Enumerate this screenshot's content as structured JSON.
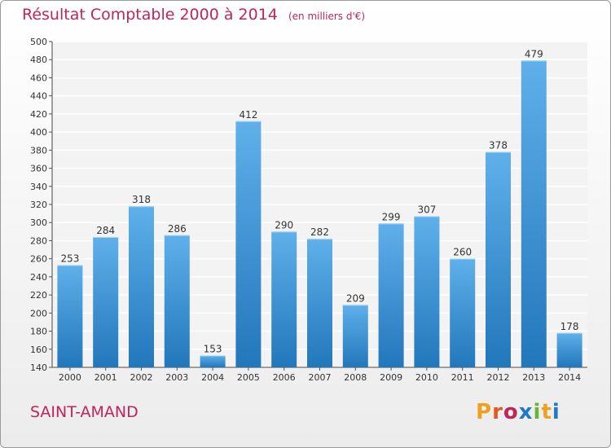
{
  "chart_data": {
    "type": "bar",
    "title": "Résultat Comptable 2000 à 2014",
    "unit": "(en milliers d'€)",
    "categories": [
      "2000",
      "2001",
      "2002",
      "2003",
      "2004",
      "2005",
      "2006",
      "2007",
      "2008",
      "2009",
      "2010",
      "2011",
      "2012",
      "2013",
      "2014"
    ],
    "values": [
      253,
      284,
      318,
      286,
      153,
      412,
      290,
      282,
      209,
      299,
      307,
      260,
      378,
      479,
      178
    ],
    "ylim": [
      140,
      500
    ],
    "ytick_step": 20,
    "grid": true,
    "bar_color": "#3a8fd4"
  },
  "footer": {
    "commune": "SAINT-AMAND",
    "logo": "Proxiti"
  },
  "colors": {
    "title": "#c0245c",
    "logo": [
      "#f0a020",
      "#e05a22",
      "#c0245c",
      "#1f78c8",
      "#6bb536",
      "#f0a020",
      "#1f78c8"
    ]
  }
}
